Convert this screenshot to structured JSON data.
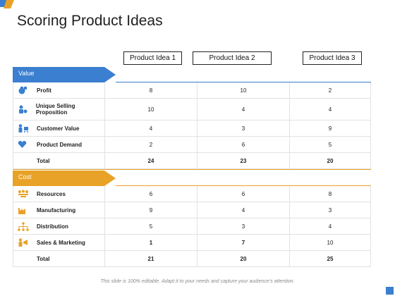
{
  "title": "Scoring Product Ideas",
  "colors": {
    "value_band": "#3b7fd0",
    "cost_band": "#e8a227",
    "icon": "#3b7fd0",
    "cost_icon": "#e8a227"
  },
  "headers": [
    "Product Idea 1",
    "Product Idea 2",
    "Product Idea 3"
  ],
  "value_section": {
    "label": "Value",
    "rows": [
      {
        "label": "Profit",
        "icon": "money-bag-icon",
        "values": [
          "8",
          "10",
          "2"
        ]
      },
      {
        "label": "Unique Selling Proposition",
        "icon": "person-star-icon",
        "values": [
          "10",
          "4",
          "4"
        ]
      },
      {
        "label": "Customer Value",
        "icon": "customer-cart-icon",
        "values": [
          "4",
          "3",
          "9"
        ]
      },
      {
        "label": "Product Demand",
        "icon": "shield-heart-icon",
        "values": [
          "2",
          "6",
          "5"
        ]
      }
    ],
    "total": {
      "label": "Total",
      "values": [
        "24",
        "23",
        "20"
      ]
    }
  },
  "cost_section": {
    "label": "Cost",
    "rows": [
      {
        "label": "Resources",
        "icon": "resources-icon",
        "values": [
          "6",
          "6",
          "8"
        ]
      },
      {
        "label": "Manufacturing",
        "icon": "factory-icon",
        "values": [
          "9",
          "4",
          "3"
        ]
      },
      {
        "label": "Distribution",
        "icon": "network-icon",
        "values": [
          "5",
          "3",
          "4"
        ]
      },
      {
        "label": "Sales & Marketing",
        "icon": "sales-marketing-icon",
        "values": [
          "1",
          "7",
          "10"
        ]
      }
    ],
    "total": {
      "label": "Total",
      "values": [
        "21",
        "20",
        "25"
      ]
    }
  },
  "footnote": "This slide is 100% editable. Adapt it to your needs and capture your audience’s attention."
}
